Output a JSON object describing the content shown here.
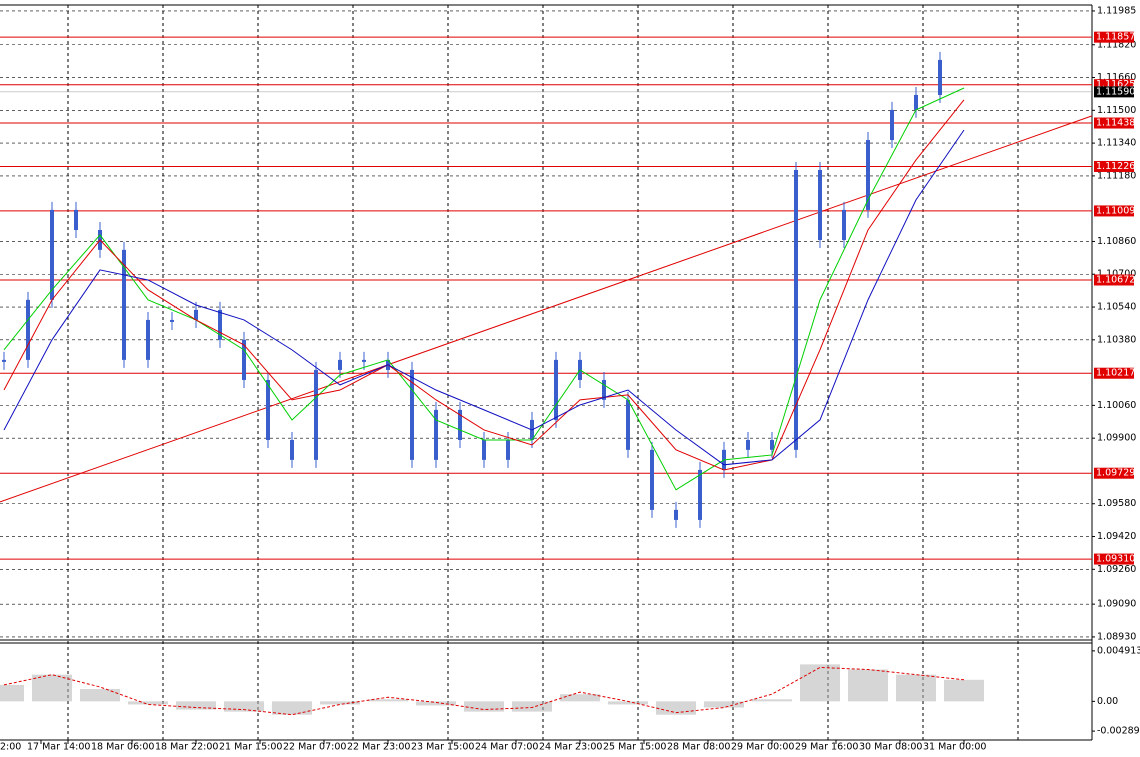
{
  "chart_data": {
    "type": "candlestick",
    "ylim": [
      1.08915,
      1.12014
    ],
    "yticks": [
      1.11985,
      {
        "value": 1.1182,
        "label": "1.11820"
      },
      {
        "value": 1.1166,
        "label": "1.11660"
      },
      {
        "value": 1.115,
        "label": "1.11500"
      },
      {
        "value": 1.1134,
        "label": "1.11340"
      },
      {
        "value": 1.1118,
        "label": "1.11180"
      },
      {
        "value": 1.1086,
        "label": "1.10860"
      },
      {
        "value": 1.107,
        "label": "1.10700"
      },
      {
        "value": 1.1054,
        "label": "1.10540"
      },
      {
        "value": 1.1038,
        "label": "1.10380"
      },
      {
        "value": 1.1006,
        "label": "1.10060"
      },
      {
        "value": 1.099,
        "label": "1.09900"
      },
      {
        "value": 1.0958,
        "label": "1.09580"
      },
      {
        "value": 1.0942,
        "label": "1.09420"
      },
      {
        "value": 1.0926,
        "label": "1.09260"
      },
      {
        "value": 1.0909,
        "label": "1.09090"
      },
      {
        "value": 1.0893,
        "label": "1.08930"
      }
    ],
    "grid": true,
    "categories": [
      "2:00",
      "17 Mar 14:00",
      "18 Mar 06:00",
      "18 Mar 22:00",
      "21 Mar 15:00",
      "22 Mar 07:00",
      "22 Mar 23:00",
      "23 Mar 15:00",
      "24 Mar 07:00",
      "24 Mar 23:00",
      "25 Mar 15:00",
      "28 Mar 08:00",
      "29 Mar 00:00",
      "29 Mar 16:00",
      "30 Mar 08:00",
      "31 Mar 00:00"
    ],
    "prices": {
      "color": "#3a5fcd",
      "values": [
        1.10282,
        1.10575,
        1.11014,
        1.10916,
        1.10819,
        1.10282,
        1.10477,
        1.10477,
        1.10526,
        1.1038,
        1.10184,
        1.09891,
        1.09794,
        1.10233,
        1.10282,
        1.10282,
        1.10233,
        1.09794,
        1.10038,
        1.09891,
        1.09794,
        1.09891,
        1.09989,
        1.10282,
        1.10184,
        1.10087,
        1.09843,
        1.0955,
        1.09501,
        1.09745,
        1.09843,
        1.09891,
        1.09843,
        1.11209,
        1.10867,
        1.11014,
        1.11355,
        1.11502,
        1.11575,
        1.11746
      ]
    },
    "moving_averages": [
      {
        "color": "#00d000",
        "values": [
          1.10331,
          1.10624,
          1.10892,
          1.10575,
          1.10477,
          1.10331,
          1.09989,
          1.10209,
          1.10282,
          1.09989,
          1.09891,
          1.09891,
          1.10233,
          1.10087,
          1.09648,
          1.09794,
          1.09818,
          1.10575,
          1.11063,
          1.11502,
          1.11609
        ]
      },
      {
        "color": "#e00000",
        "values": [
          1.10135,
          1.10575,
          1.10867,
          1.10624,
          1.10477,
          1.10355,
          1.10087,
          1.10135,
          1.10258,
          1.10087,
          1.0994,
          1.09867,
          1.10087,
          1.10111,
          1.09843,
          1.09745,
          1.09794,
          1.10331,
          1.10916,
          1.11258,
          1.11551
        ]
      },
      {
        "color": "#1010c0",
        "values": [
          1.0994,
          1.1038,
          1.10721,
          1.10672,
          1.1055,
          1.10477,
          1.10331,
          1.1016,
          1.10258,
          1.10135,
          1.10038,
          1.0994,
          1.10062,
          1.10135,
          1.0994,
          1.0977,
          1.09794,
          1.09989,
          1.10575,
          1.11063,
          1.11404
        ]
      }
    ],
    "levels": {
      "color": "#e00000",
      "values": [
        1.11857,
        1.11625,
        1.11438,
        1.11226,
        1.11009,
        1.10672,
        1.10217,
        1.09729,
        {
          "value": 1.0931,
          "label": "1.09310"
        }
      ]
    },
    "current_price": {
      "value": 1.1159,
      "label": "1.11590"
    },
    "trendline": {
      "color": "#e00000",
      "values": [
        1.09589,
        1.11473
      ]
    },
    "indicator": {
      "ylim": [
        -0.00376,
        0.00568
      ],
      "yticks": [
        0.004913,
        {
          "value": 0,
          "label": "0.00"
        },
        -0.002893
      ],
      "histogram": {
        "color": "#b4b4b4",
        "values": [
          0.0016,
          0.0026,
          0.0012,
          -0.0003,
          -0.0008,
          -0.001,
          -0.0013,
          -0.0003,
          0.0002,
          -0.0004,
          -0.001,
          -0.001,
          0.0007,
          -0.0003,
          -0.0013,
          -0.0006,
          0.0002,
          0.0036,
          0.0031,
          0.0026,
          0.0021
        ]
      },
      "signal": {
        "color": "#e00000",
        "values": [
          0.0016,
          0.0026,
          0.0014,
          -0.0003,
          -0.0006,
          -0.0008,
          -0.0013,
          -0.0003,
          0.0004,
          -0.0001,
          -0.0008,
          -0.0006,
          0.0009,
          0.0,
          -0.0011,
          -0.0006,
          0.0007,
          0.0033,
          0.0031,
          0.0026,
          0.0021
        ]
      }
    }
  }
}
